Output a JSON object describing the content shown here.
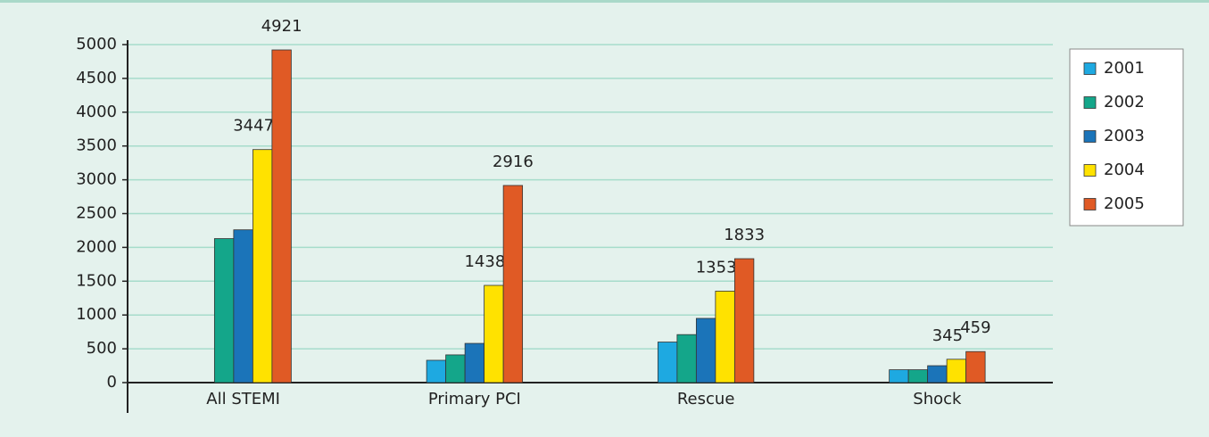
{
  "chart_data": {
    "type": "bar",
    "categories": [
      "All STEMI",
      "Primary PCI",
      "Rescue",
      "Shock"
    ],
    "series": [
      {
        "name": "2001",
        "color": "#1ea9e1",
        "values": [
          null,
          330,
          600,
          190
        ]
      },
      {
        "name": "2002",
        "color": "#14a68a",
        "values": [
          2130,
          410,
          710,
          190
        ]
      },
      {
        "name": "2003",
        "color": "#1b74b9",
        "values": [
          2260,
          580,
          950,
          250
        ]
      },
      {
        "name": "2004",
        "color": "#ffe200",
        "values": [
          3447,
          1438,
          1353,
          345
        ],
        "show_labels": true
      },
      {
        "name": "2005",
        "color": "#e05a25",
        "values": [
          4921,
          2916,
          1833,
          459
        ],
        "show_labels": true
      }
    ],
    "ylim": [
      0,
      5000
    ],
    "yticks": [
      0,
      500,
      1000,
      1500,
      2000,
      2500,
      3000,
      3500,
      4000,
      4500,
      5000
    ],
    "grid": true,
    "legend": "right"
  }
}
